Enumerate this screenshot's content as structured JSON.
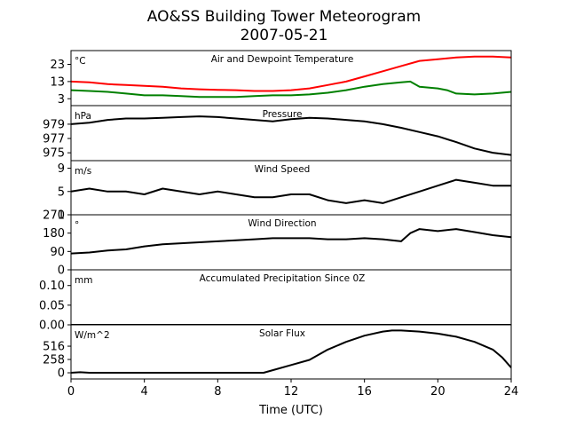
{
  "title": "AO&SS Building Tower Meteorogram",
  "subtitle": "2007-05-21",
  "chart_data": {
    "type": "line",
    "xlabel": "Time (UTC)",
    "xlim": [
      0,
      24
    ],
    "xticks": [
      0,
      4,
      8,
      12,
      16,
      20,
      24
    ],
    "panels": [
      {
        "title": "Air and Dewpoint Temperature",
        "unit": "°C",
        "ylim": [
          -1,
          31
        ],
        "yticks": [
          3,
          13,
          23
        ],
        "series": [
          {
            "color": "#ff0000",
            "x": [
              0,
              1,
              2,
              3,
              4,
              5,
              6,
              7,
              8,
              9,
              10,
              11,
              12,
              13,
              14,
              15,
              16,
              17,
              18,
              19,
              20,
              21,
              22,
              23,
              24
            ],
            "y": [
              13,
              12.5,
              11.5,
              11,
              10.5,
              10,
              9,
              8.5,
              8.2,
              8,
              7.5,
              7.5,
              8,
              9,
              11,
              13,
              16,
              19,
              22,
              25,
              26,
              27,
              27.5,
              27.5,
              27
            ]
          },
          {
            "color": "#008000",
            "x": [
              0,
              1,
              2,
              3,
              4,
              5,
              6,
              7,
              8,
              9,
              10,
              11,
              12,
              13,
              14,
              15,
              16,
              17,
              18,
              18.5,
              19,
              20,
              20.5,
              21,
              22,
              23,
              24
            ],
            "y": [
              8,
              7.5,
              7,
              6,
              5,
              5,
              4.5,
              4,
              4,
              4,
              4.5,
              5,
              5,
              5.5,
              6.5,
              8,
              10,
              11.5,
              12.5,
              13,
              10,
              9,
              8,
              6,
              5.5,
              6,
              7
            ]
          }
        ]
      },
      {
        "title": "Pressure",
        "unit": "hPa",
        "ylim": [
          973.9,
          981.6
        ],
        "yticks": [
          975,
          977,
          979
        ],
        "series": [
          {
            "color": "#000000",
            "x": [
              0,
              1,
              2,
              3,
              4,
              5,
              6,
              7,
              8,
              9,
              10,
              11,
              12,
              13,
              14,
              15,
              16,
              17,
              18,
              19,
              20,
              21,
              22,
              23,
              24
            ],
            "y": [
              979,
              979.2,
              979.6,
              979.8,
              979.8,
              979.9,
              980.0,
              980.1,
              980.0,
              979.8,
              979.6,
              979.4,
              979.7,
              979.9,
              979.8,
              979.6,
              979.4,
              979.0,
              978.5,
              977.9,
              977.3,
              976.5,
              975.6,
              975.0,
              974.7
            ]
          }
        ]
      },
      {
        "title": "Wind Speed",
        "unit": "m/s",
        "ylim": [
          1,
          10.3
        ],
        "yticks": [
          1,
          5,
          9
        ],
        "series": [
          {
            "color": "#000000",
            "x": [
              0,
              1,
              2,
              3,
              4,
              5,
              6,
              7,
              8,
              9,
              10,
              11,
              12,
              13,
              14,
              15,
              16,
              17,
              18,
              19,
              20,
              21,
              22,
              23,
              24
            ],
            "y": [
              5,
              5.5,
              5,
              5,
              4.5,
              5.5,
              5,
              4.5,
              5,
              4.5,
              4,
              4,
              4.5,
              4.5,
              3.5,
              3,
              3.5,
              3,
              4,
              5,
              6,
              7,
              6.5,
              6,
              6
            ]
          }
        ]
      },
      {
        "title": "Wind Direction",
        "unit": "°",
        "ylim": [
          0,
          270
        ],
        "yticks": [
          0,
          90,
          180,
          270
        ],
        "series": [
          {
            "color": "#000000",
            "x": [
              0,
              1,
              2,
              3,
              4,
              5,
              6,
              7,
              8,
              9,
              10,
              11,
              12,
              13,
              14,
              15,
              16,
              17,
              18,
              18.5,
              19,
              20,
              21,
              22,
              23,
              24
            ],
            "y": [
              80,
              85,
              95,
              100,
              115,
              125,
              130,
              135,
              140,
              145,
              150,
              155,
              155,
              155,
              150,
              150,
              155,
              150,
              140,
              180,
              200,
              190,
              200,
              185,
              170,
              160
            ]
          }
        ]
      },
      {
        "title": "Accumulated Precipitation Since 0Z",
        "unit": "mm",
        "ylim": [
          0,
          0.14
        ],
        "yticks": [
          0.0,
          0.05,
          0.1
        ],
        "ytick_labels": [
          "0.00",
          "0.05",
          "0.10"
        ],
        "series": [
          {
            "color": "#000000",
            "x": [
              0,
              24
            ],
            "y": [
              0,
              0
            ]
          }
        ]
      },
      {
        "title": "Solar Flux",
        "unit": "W/m^2",
        "ylim": [
          -120,
          930
        ],
        "yticks": [
          0,
          258,
          516
        ],
        "series": [
          {
            "color": "#000000",
            "x": [
              0,
              0.5,
              1,
              2,
              4,
              6,
              8,
              10,
              10.5,
              11,
              12,
              13,
              14,
              15,
              16,
              17,
              17.5,
              18,
              19,
              20,
              21,
              22,
              23,
              23.5,
              24
            ],
            "y": [
              0,
              10,
              0,
              0,
              0,
              0,
              0,
              0,
              0,
              50,
              150,
              250,
              450,
              600,
              720,
              800,
              820,
              820,
              800,
              760,
              700,
              600,
              450,
              300,
              100
            ]
          }
        ]
      }
    ]
  }
}
